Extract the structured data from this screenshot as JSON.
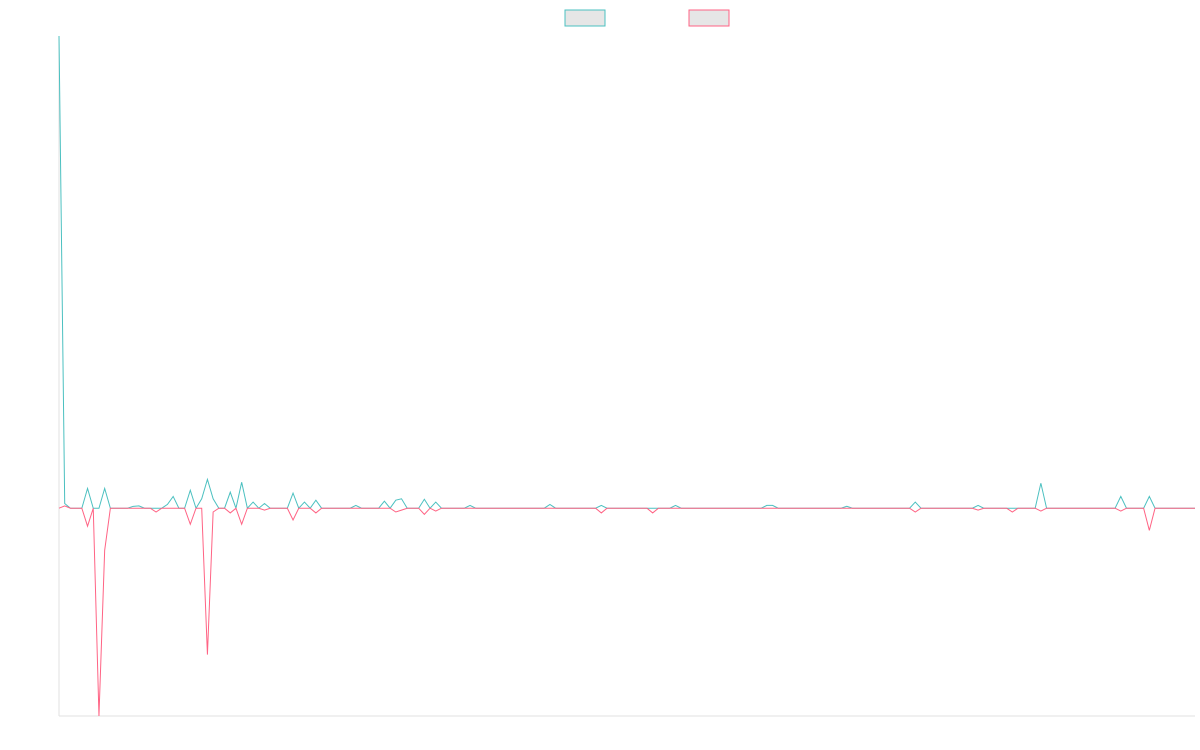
{
  "chart_data": {
    "type": "line",
    "ylim": [
      -44,
      100
    ],
    "grid": false,
    "legend": "top",
    "series": [
      {
        "color": "#4bc0c0",
        "values": [
          100,
          1,
          0,
          0,
          0,
          4.2,
          0,
          0,
          4.2,
          0,
          0,
          0,
          0,
          0.4,
          0.5,
          0,
          0,
          0,
          0,
          0.8,
          2.5,
          0,
          0,
          3.8,
          0,
          2,
          6.1,
          2,
          0,
          0,
          3.4,
          0,
          5.5,
          0,
          1.3,
          0,
          1,
          0,
          0,
          0,
          0,
          3.2,
          0,
          1.3,
          0,
          1.7,
          0,
          0,
          0,
          0,
          0,
          0,
          0.6,
          0,
          0,
          0,
          0,
          1.5,
          0,
          1.7,
          2,
          0,
          0,
          0,
          1.9,
          0,
          1.3,
          0,
          0,
          0,
          0,
          0,
          0.6,
          0,
          0,
          0,
          0,
          0,
          0,
          0,
          0,
          0,
          0,
          0,
          0,
          0,
          0.8,
          0,
          0,
          0,
          0,
          0,
          0,
          0,
          0,
          0.6,
          0,
          0,
          0,
          0,
          0,
          0,
          0,
          0,
          0,
          0,
          0,
          0,
          0.6,
          0,
          0,
          0,
          0,
          0,
          0,
          0,
          0,
          0,
          0,
          0,
          0,
          0,
          0,
          0,
          0.6,
          0.6,
          0,
          0,
          0,
          0,
          0,
          0,
          0,
          0,
          0,
          0,
          0,
          0,
          0.4,
          0,
          0,
          0,
          0,
          0,
          0,
          0,
          0,
          0,
          0,
          0,
          1.3,
          0,
          0,
          0,
          0,
          0,
          0,
          0,
          0,
          0,
          0,
          0.6,
          0,
          0,
          0,
          0,
          0,
          0,
          0,
          0,
          0,
          0,
          5.3,
          0,
          0,
          0,
          0,
          0,
          0,
          0,
          0,
          0,
          0,
          0,
          0,
          0,
          2.5,
          0,
          0,
          0,
          0,
          2.5,
          0,
          0,
          0,
          0,
          0,
          0,
          0,
          0
        ]
      },
      {
        "color": "#ff6384",
        "values": [
          0,
          0.5,
          0,
          0,
          0,
          -3.8,
          0,
          -44,
          -8.9,
          0,
          0,
          0,
          0,
          0,
          0,
          0,
          0,
          -0.8,
          0,
          0,
          0,
          0,
          0,
          -3.4,
          0,
          0,
          -31,
          -0.8,
          0,
          0,
          -1,
          0,
          -3.4,
          0,
          0,
          0,
          -0.4,
          0,
          0,
          0,
          0,
          -2.5,
          0,
          0,
          0,
          -1,
          0,
          0,
          0,
          0,
          0,
          0,
          0,
          0,
          0,
          0,
          0,
          0,
          0,
          -0.8,
          -0.4,
          0,
          0,
          0,
          -1.3,
          0,
          -0.6,
          0,
          0,
          0,
          0,
          0,
          0,
          0,
          0,
          0,
          0,
          0,
          0,
          0,
          0,
          0,
          0,
          0,
          0,
          0,
          0,
          0,
          0,
          0,
          0,
          0,
          0,
          0,
          0,
          -1,
          0,
          0,
          0,
          0,
          0,
          0,
          0,
          0,
          -1,
          0,
          0,
          0,
          0,
          0,
          0,
          0,
          0,
          0,
          0,
          0,
          0,
          0,
          0,
          0,
          0,
          0,
          0,
          0,
          0,
          0,
          0,
          0,
          0,
          0,
          0,
          0,
          0,
          0,
          0,
          0,
          0,
          0,
          0,
          0,
          0,
          0,
          0,
          0,
          0,
          0,
          0,
          0,
          0,
          0,
          -0.8,
          0,
          0,
          0,
          0,
          0,
          0,
          0,
          0,
          0,
          0,
          -0.4,
          0,
          0,
          0,
          0,
          0,
          -0.8,
          0,
          0,
          0,
          0,
          -0.6,
          0,
          0,
          0,
          0,
          0,
          0,
          0,
          0,
          0,
          0,
          0,
          0,
          0,
          -0.6,
          0,
          0,
          0,
          0,
          -4.7,
          0,
          0,
          0,
          0,
          0,
          0,
          0,
          0
        ]
      }
    ]
  }
}
